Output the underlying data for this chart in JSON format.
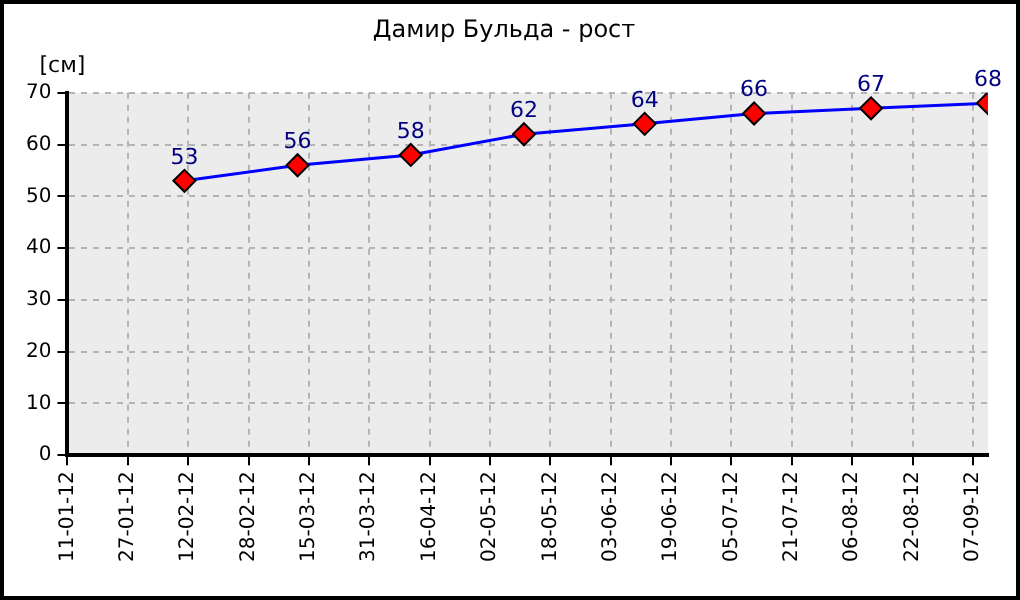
{
  "chart_data": {
    "type": "line",
    "title": "Дамир Бульда - рост",
    "ylabel": "[см]",
    "x": [
      "2012-02-11",
      "2012-03-12",
      "2012-04-11",
      "2012-05-11",
      "2012-06-12",
      "2012-07-11",
      "2012-08-11",
      "2012-09-11"
    ],
    "series": [
      {
        "color": "#0000ff",
        "values": [
          53,
          56,
          58,
          62,
          64,
          66,
          67,
          68
        ]
      }
    ],
    "xlim": [
      "2012-01-11",
      "2012-09-11"
    ],
    "xticks": [
      {
        "value": "2012-01-11",
        "label": "11-01-12"
      },
      {
        "value": "2012-01-27",
        "label": "27-01-12"
      },
      {
        "value": "2012-02-12",
        "label": "12-02-12"
      },
      {
        "value": "2012-02-28",
        "label": "28-02-12"
      },
      {
        "value": "2012-03-15",
        "label": "15-03-12"
      },
      {
        "value": "2012-03-31",
        "label": "31-03-12"
      },
      {
        "value": "2012-04-16",
        "label": "16-04-12"
      },
      {
        "value": "2012-05-02",
        "label": "02-05-12"
      },
      {
        "value": "2012-05-18",
        "label": "18-05-12"
      },
      {
        "value": "2012-06-03",
        "label": "03-06-12"
      },
      {
        "value": "2012-06-19",
        "label": "19-06-12"
      },
      {
        "value": "2012-07-05",
        "label": "05-07-12"
      },
      {
        "value": "2012-07-21",
        "label": "21-07-12"
      },
      {
        "value": "2012-08-06",
        "label": "06-08-12"
      },
      {
        "value": "2012-08-22",
        "label": "22-08-12"
      },
      {
        "value": "2012-09-07",
        "label": "07-09-12"
      }
    ],
    "ylim": [
      0,
      70
    ],
    "yticks": [
      0,
      10,
      20,
      30,
      40,
      50,
      60,
      70
    ],
    "grid": true,
    "marker": "diamond",
    "line_style": "solid",
    "data_labels": true,
    "legend": false
  }
}
